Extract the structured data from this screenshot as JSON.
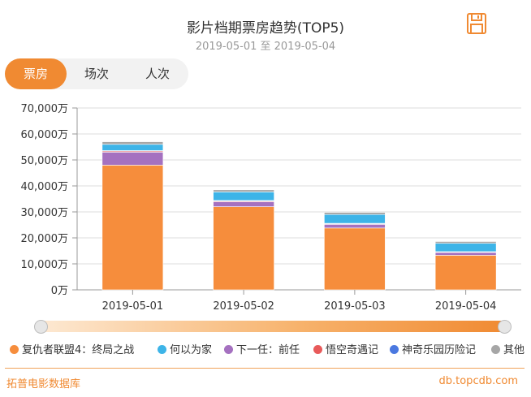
{
  "header": {
    "title": "影片档期票房趋势(TOP5)",
    "subtitle": "2019-05-01 至 2019-05-04"
  },
  "toolbar": {
    "save_icon": "save-icon"
  },
  "tabs": [
    {
      "label": "票房",
      "active": true
    },
    {
      "label": "场次",
      "active": false
    },
    {
      "label": "人次",
      "active": false
    }
  ],
  "chart_data": {
    "type": "bar",
    "stacked": true,
    "categories": [
      "2019-05-01",
      "2019-05-02",
      "2019-05-03",
      "2019-05-04"
    ],
    "y_ticks": [
      "0万",
      "10,000万",
      "20,000万",
      "30,000万",
      "40,000万",
      "50,000万",
      "60,000万",
      "70,000万"
    ],
    "ylim": [
      0,
      70000
    ],
    "yunit": "万",
    "grid": true,
    "series": [
      {
        "name": "复仇者联盟4：终局之战",
        "color": "#f68d3c",
        "values": [
          48000,
          32000,
          23800,
          13300
        ]
      },
      {
        "name": "下一任：前任",
        "color": "#a571c0",
        "values": [
          5000,
          1900,
          1400,
          1100
        ]
      },
      {
        "name": "悟空奇遇记",
        "color": "#e85a5a",
        "values": [
          400,
          300,
          250,
          200
        ]
      },
      {
        "name": "神奇乐园历险记",
        "color": "#4a78e0",
        "values": [
          200,
          200,
          150,
          100
        ]
      },
      {
        "name": "何以为家",
        "color": "#3db4e8",
        "values": [
          2400,
          3300,
          3400,
          3200
        ]
      },
      {
        "name": "其他",
        "color": "#a6a6a6",
        "values": [
          1000,
          800,
          800,
          700
        ]
      }
    ]
  },
  "legend": [
    {
      "label": "复仇者联盟4：终局之战",
      "color": "#f68d3c"
    },
    {
      "label": "何以为家",
      "color": "#3db4e8"
    },
    {
      "label": "下一任：前任",
      "color": "#a571c0"
    },
    {
      "label": "悟空奇遇记",
      "color": "#e85a5a"
    },
    {
      "label": "神奇乐园历险记",
      "color": "#4a78e0"
    },
    {
      "label": "其他",
      "color": "#a6a6a6"
    }
  ],
  "footer": {
    "brand": "拓普电影数据库",
    "site": "db.topcdb.com"
  }
}
